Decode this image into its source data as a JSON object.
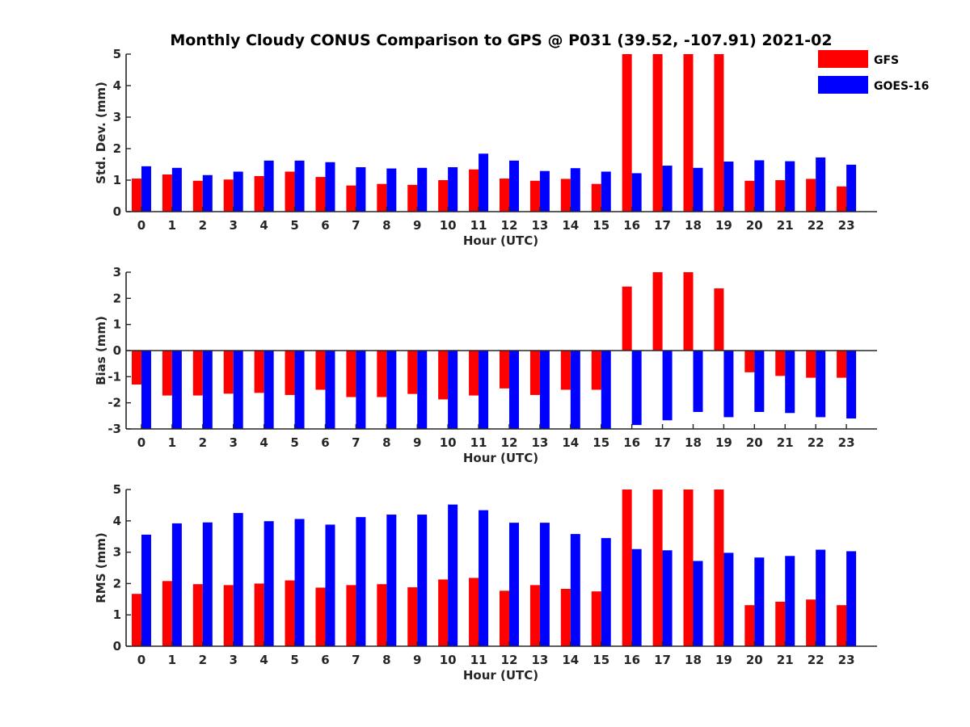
{
  "title": "Monthly Cloudy CONUS Comparison to GPS @ P031 (39.52, -107.91) 2021-02",
  "legend": {
    "placement": "top-right",
    "entries": [
      {
        "label": "GFS",
        "color": "#ff0000"
      },
      {
        "label": "GOES-16",
        "color": "#0000ff"
      }
    ]
  },
  "chart_data": [
    {
      "type": "bar",
      "xlabel": "Hour (UTC)",
      "ylabel": "Std. Dev. (mm)",
      "ylim": [
        0,
        5
      ],
      "yticks": [
        "0",
        "1",
        "2",
        "3",
        "4",
        "5"
      ],
      "categories": [
        "0",
        "1",
        "2",
        "3",
        "4",
        "5",
        "6",
        "7",
        "8",
        "9",
        "10",
        "11",
        "12",
        "13",
        "14",
        "15",
        "16",
        "17",
        "18",
        "19",
        "20",
        "21",
        "22",
        "23"
      ],
      "series": [
        {
          "name": "GFS",
          "color": "#ff0000",
          "values": [
            1.05,
            1.18,
            0.98,
            1.02,
            1.13,
            1.27,
            1.1,
            0.83,
            0.88,
            0.85,
            1.0,
            1.34,
            1.05,
            0.98,
            1.04,
            0.88,
            5.0,
            5.0,
            5.0,
            5.0,
            0.98,
            1.0,
            1.04,
            0.8
          ]
        },
        {
          "name": "GOES-16",
          "color": "#0000ff",
          "values": [
            1.44,
            1.39,
            1.16,
            1.27,
            1.62,
            1.62,
            1.57,
            1.41,
            1.37,
            1.39,
            1.41,
            1.84,
            1.62,
            1.29,
            1.38,
            1.27,
            1.22,
            1.46,
            1.39,
            1.59,
            1.63,
            1.6,
            1.72,
            1.49
          ]
        }
      ]
    },
    {
      "type": "bar",
      "xlabel": "Hour (UTC)",
      "ylabel": "Bias (mm)",
      "ylim": [
        -3,
        3
      ],
      "yticks": [
        "-3",
        "-2",
        "-1",
        "0",
        "1",
        "2",
        "3"
      ],
      "categories": [
        "0",
        "1",
        "2",
        "3",
        "4",
        "5",
        "6",
        "7",
        "8",
        "9",
        "10",
        "11",
        "12",
        "13",
        "14",
        "15",
        "16",
        "17",
        "18",
        "19",
        "20",
        "21",
        "22",
        "23"
      ],
      "series": [
        {
          "name": "GFS",
          "color": "#ff0000",
          "values": [
            -1.3,
            -1.72,
            -1.72,
            -1.65,
            -1.62,
            -1.7,
            -1.5,
            -1.78,
            -1.78,
            -1.66,
            -1.87,
            -1.72,
            -1.45,
            -1.7,
            -1.5,
            -1.5,
            2.45,
            3.0,
            3.0,
            2.38,
            -0.83,
            -0.97,
            -1.04,
            -1.04
          ]
        },
        {
          "name": "GOES-16",
          "color": "#0000ff",
          "values": [
            -3.0,
            -3.0,
            -3.0,
            -3.0,
            -3.0,
            -3.0,
            -3.0,
            -3.0,
            -3.0,
            -3.0,
            -3.0,
            -3.0,
            -3.0,
            -3.0,
            -3.0,
            -3.0,
            -2.85,
            -2.67,
            -2.35,
            -2.55,
            -2.35,
            -2.39,
            -2.55,
            -2.6
          ]
        }
      ]
    },
    {
      "type": "bar",
      "xlabel": "Hour (UTC)",
      "ylabel": "RMS (mm)",
      "ylim": [
        0,
        5
      ],
      "yticks": [
        "0",
        "1",
        "2",
        "3",
        "4",
        "5"
      ],
      "categories": [
        "0",
        "1",
        "2",
        "3",
        "4",
        "5",
        "6",
        "7",
        "8",
        "9",
        "10",
        "11",
        "12",
        "13",
        "14",
        "15",
        "16",
        "17",
        "18",
        "19",
        "20",
        "21",
        "22",
        "23"
      ],
      "series": [
        {
          "name": "GFS",
          "color": "#ff0000",
          "values": [
            1.67,
            2.08,
            1.98,
            1.95,
            2.0,
            2.1,
            1.87,
            1.95,
            1.98,
            1.88,
            2.13,
            2.18,
            1.77,
            1.95,
            1.83,
            1.75,
            5.0,
            5.0,
            5.0,
            5.0,
            1.31,
            1.42,
            1.49,
            1.31
          ]
        },
        {
          "name": "GOES-16",
          "color": "#0000ff",
          "values": [
            3.56,
            3.92,
            3.95,
            4.25,
            3.99,
            4.06,
            3.88,
            4.12,
            4.2,
            4.2,
            4.52,
            4.34,
            3.94,
            3.94,
            3.58,
            3.45,
            3.1,
            3.06,
            2.72,
            2.98,
            2.83,
            2.88,
            3.08,
            3.03
          ]
        }
      ]
    }
  ]
}
